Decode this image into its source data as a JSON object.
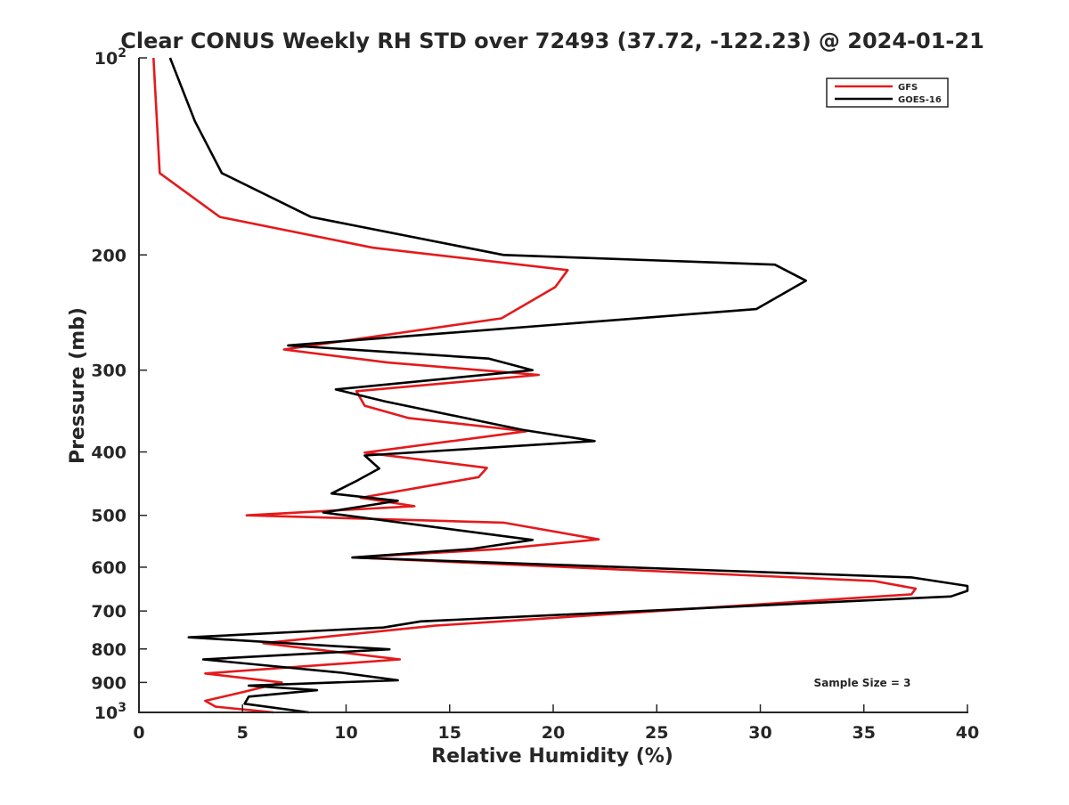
{
  "chart_data": {
    "type": "line",
    "title": "Clear CONUS Weekly RH STD over 72493 (37.72, -122.23) @ 2024-01-21",
    "xlabel": "Relative Humidity (%)",
    "ylabel": "Pressure (mb)",
    "xlim": [
      0,
      40
    ],
    "ylim": [
      100,
      1000
    ],
    "y_scale": "log",
    "y_reversed": true,
    "x_ticks": [
      "0",
      "5",
      "10",
      "15",
      "20",
      "25",
      "30",
      "35",
      "40"
    ],
    "x_tick_values": [
      0,
      5,
      10,
      15,
      20,
      25,
      30,
      35,
      40
    ],
    "y_tick_values": [
      100,
      200,
      300,
      400,
      500,
      600,
      700,
      800,
      900,
      1000
    ],
    "y_tick_labels": [
      {
        "base": "10",
        "exp": "2"
      },
      {
        "base": "200",
        "exp": ""
      },
      {
        "base": "300",
        "exp": ""
      },
      {
        "base": "400",
        "exp": ""
      },
      {
        "base": "500",
        "exp": ""
      },
      {
        "base": "600",
        "exp": ""
      },
      {
        "base": "700",
        "exp": ""
      },
      {
        "base": "800",
        "exp": ""
      },
      {
        "base": "900",
        "exp": ""
      },
      {
        "base": "10",
        "exp": "3"
      }
    ],
    "legend_position": "top-right",
    "annotation": "Sample Size = 3",
    "grid": false,
    "series": [
      {
        "name": "GFS",
        "color": "#e41a1c",
        "points": [
          [
            0.7,
            100
          ],
          [
            1.0,
            150
          ],
          [
            3.9,
            175
          ],
          [
            11.3,
            195
          ],
          [
            20.7,
            211
          ],
          [
            20.1,
            224
          ],
          [
            17.5,
            250
          ],
          [
            7.0,
            279
          ],
          [
            12.0,
            292
          ],
          [
            16.5,
            300
          ],
          [
            19.3,
            305
          ],
          [
            10.5,
            323
          ],
          [
            10.9,
            340
          ],
          [
            13.0,
            355
          ],
          [
            18.7,
            372
          ],
          [
            10.9,
            401
          ],
          [
            16.8,
            423
          ],
          [
            16.4,
            437
          ],
          [
            10.7,
            470
          ],
          [
            13.3,
            484
          ],
          [
            5.2,
            500
          ],
          [
            17.6,
            513
          ],
          [
            22.2,
            544
          ],
          [
            17.4,
            563
          ],
          [
            10.4,
            580
          ],
          [
            35.5,
            630
          ],
          [
            37.5,
            647
          ],
          [
            37.3,
            660
          ],
          [
            14.3,
            737
          ],
          [
            6.0,
            784
          ],
          [
            12.6,
            830
          ],
          [
            3.2,
            872
          ],
          [
            6.9,
            900
          ],
          [
            5.1,
            930
          ],
          [
            3.2,
            960
          ],
          [
            3.7,
            980
          ],
          [
            6.5,
            1000
          ]
        ]
      },
      {
        "name": "GOES-16",
        "color": "#000000",
        "points": [
          [
            1.5,
            100
          ],
          [
            2.7,
            125
          ],
          [
            4.0,
            150
          ],
          [
            8.3,
            175
          ],
          [
            17.6,
            200
          ],
          [
            30.7,
            207
          ],
          [
            32.2,
            219
          ],
          [
            29.8,
            242
          ],
          [
            7.2,
            275
          ],
          [
            16.9,
            288
          ],
          [
            19.0,
            300
          ],
          [
            9.5,
            321
          ],
          [
            11.9,
            335
          ],
          [
            18.5,
            370
          ],
          [
            22.0,
            385
          ],
          [
            10.9,
            405
          ],
          [
            11.6,
            424
          ],
          [
            10.5,
            443
          ],
          [
            9.3,
            463
          ],
          [
            12.5,
            475
          ],
          [
            8.9,
            495
          ],
          [
            19.0,
            545
          ],
          [
            16.0,
            563
          ],
          [
            10.3,
            580
          ],
          [
            37.3,
            622
          ],
          [
            40.0,
            641
          ],
          [
            40.0,
            652
          ],
          [
            39.2,
            665
          ],
          [
            13.6,
            726
          ],
          [
            11.8,
            742
          ],
          [
            2.4,
            768
          ],
          [
            12.1,
            801
          ],
          [
            3.1,
            830
          ],
          [
            9.8,
            870
          ],
          [
            12.5,
            893
          ],
          [
            5.3,
            910
          ],
          [
            8.6,
            925
          ],
          [
            5.3,
            946
          ],
          [
            5.1,
            970
          ],
          [
            8.2,
            1000
          ]
        ]
      }
    ]
  }
}
